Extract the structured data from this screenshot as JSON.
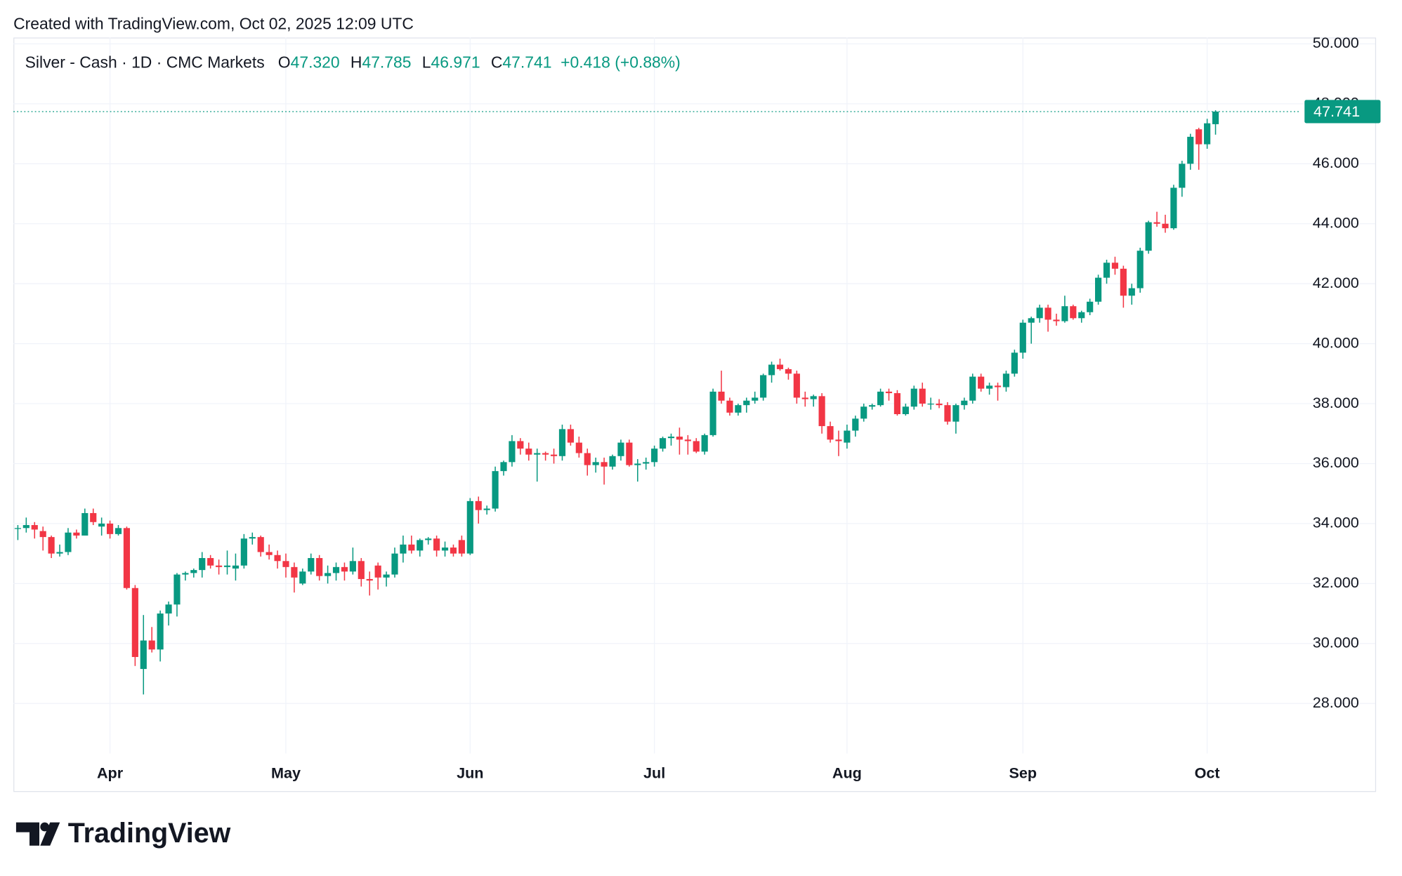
{
  "created": "Created with TradingView.com, Oct 02, 2025 12:09 UTC",
  "brand": "TradingView",
  "chart_data": {
    "type": "candlestick",
    "title": "Silver - Cash · 1D · CMC Markets",
    "ohlc_labels": [
      {
        "key": "O",
        "value": "47.320"
      },
      {
        "key": "H",
        "value": "47.785"
      },
      {
        "key": "L",
        "value": "46.971"
      },
      {
        "key": "C",
        "value": "47.741"
      }
    ],
    "change_label": "+0.418 (+0.88%)",
    "up_color": "#089981",
    "down_color": "#f23645",
    "grid": true,
    "xlim": [
      -0.53,
      153.2
    ],
    "xticks": [
      {
        "value": 11,
        "label": "Apr"
      },
      {
        "value": 32,
        "label": "May"
      },
      {
        "value": 54,
        "label": "Jun"
      },
      {
        "value": 76,
        "label": "Jul"
      },
      {
        "value": 99,
        "label": "Aug"
      },
      {
        "value": 120,
        "label": "Sep"
      },
      {
        "value": 142,
        "label": "Oct"
      }
    ],
    "ylim": [
      26.33,
      50.21
    ],
    "yticks": [
      {
        "value": 28,
        "label": "28.000"
      },
      {
        "value": 30,
        "label": "30.000"
      },
      {
        "value": 32,
        "label": "32.000"
      },
      {
        "value": 34,
        "label": "34.000"
      },
      {
        "value": 36,
        "label": "36.000"
      },
      {
        "value": 38,
        "label": "38.000"
      },
      {
        "value": 40,
        "label": "40.000"
      },
      {
        "value": 42,
        "label": "42.000"
      },
      {
        "value": 44,
        "label": "44.000"
      },
      {
        "value": 46,
        "label": "46.000"
      },
      {
        "value": 48,
        "label": "48.000"
      },
      {
        "value": 50,
        "label": "50.000"
      }
    ],
    "open": [
      33.85,
      33.85,
      33.95,
      33.75,
      33.55,
      33.0,
      33.05,
      33.7,
      33.6,
      34.35,
      33.9,
      34.0,
      33.65,
      33.85,
      31.85,
      29.15,
      30.1,
      29.8,
      31.0,
      31.3,
      32.3,
      32.35,
      32.45,
      32.85,
      32.6,
      32.55,
      32.5,
      32.6,
      33.5,
      33.55,
      33.05,
      32.95,
      32.75,
      32.55,
      32.0,
      32.4,
      32.85,
      32.25,
      32.35,
      32.55,
      32.4,
      32.75,
      32.15,
      32.6,
      32.2,
      32.3,
      33.0,
      33.3,
      33.1,
      33.45,
      33.5,
      33.1,
      33.2,
      33.45,
      33.0,
      34.75,
      34.45,
      34.5,
      35.75,
      36.05,
      36.75,
      36.5,
      36.3,
      36.35,
      36.3,
      36.25,
      37.15,
      36.7,
      36.35,
      35.95,
      36.05,
      35.9,
      36.25,
      36.7,
      35.95,
      36.0,
      36.05,
      36.5,
      36.85,
      36.9,
      36.8,
      36.75,
      36.4,
      36.95,
      38.4,
      38.1,
      37.7,
      37.95,
      38.1,
      38.2,
      38.95,
      39.3,
      39.15,
      39.0,
      38.2,
      38.15,
      38.25,
      37.25,
      36.8,
      36.7,
      37.1,
      37.5,
      37.9,
      37.95,
      38.4,
      38.35,
      37.65,
      37.9,
      38.5,
      38.0,
      38.0,
      37.95,
      37.4,
      37.95,
      38.1,
      38.9,
      38.5,
      38.6,
      38.55,
      39.0,
      39.7,
      40.7,
      40.85,
      41.2,
      40.8,
      40.75,
      41.25,
      40.85,
      41.05,
      41.4,
      42.2,
      42.7,
      42.5,
      41.6,
      41.85,
      43.1,
      44.05,
      44.0,
      43.85,
      45.2,
      46.0,
      47.15,
      46.65,
      47.32
    ],
    "high": [
      33.95,
      34.2,
      34.05,
      33.9,
      33.6,
      33.3,
      33.85,
      33.8,
      34.5,
      34.5,
      34.2,
      34.1,
      33.95,
      33.9,
      31.95,
      30.95,
      30.55,
      31.1,
      31.4,
      32.35,
      32.4,
      32.5,
      33.05,
      32.95,
      32.8,
      33.1,
      33.0,
      33.65,
      33.7,
      33.6,
      33.3,
      33.1,
      33.0,
      32.7,
      32.5,
      33.0,
      32.95,
      32.6,
      32.7,
      32.7,
      33.2,
      32.85,
      32.4,
      32.7,
      32.4,
      33.2,
      33.6,
      33.6,
      33.5,
      33.55,
      33.6,
      33.4,
      33.3,
      33.6,
      34.85,
      34.9,
      34.6,
      35.9,
      36.1,
      36.95,
      36.85,
      36.7,
      36.5,
      36.4,
      36.5,
      37.3,
      37.3,
      36.9,
      36.5,
      36.2,
      36.2,
      36.3,
      36.8,
      36.8,
      36.15,
      36.2,
      36.6,
      36.9,
      37.0,
      37.2,
      36.95,
      36.85,
      37.0,
      38.5,
      39.1,
      38.2,
      38.0,
      38.2,
      38.4,
      39.0,
      39.4,
      39.5,
      39.2,
      39.1,
      38.4,
      38.3,
      38.35,
      37.4,
      37.1,
      37.3,
      37.6,
      38.0,
      38.0,
      38.5,
      38.5,
      38.45,
      38.0,
      38.6,
      38.7,
      38.2,
      38.15,
      38.05,
      38.0,
      38.2,
      39.0,
      39.0,
      38.7,
      38.7,
      39.1,
      39.8,
      40.8,
      40.9,
      41.3,
      41.3,
      41.0,
      41.6,
      41.3,
      41.1,
      41.5,
      42.3,
      42.8,
      42.9,
      42.6,
      42.0,
      43.2,
      44.1,
      44.4,
      44.3,
      45.3,
      46.1,
      47.0,
      47.2,
      47.5,
      47.785
    ],
    "low": [
      33.45,
      33.7,
      33.5,
      33.1,
      32.85,
      32.9,
      32.95,
      33.5,
      33.6,
      33.95,
      33.6,
      33.5,
      33.6,
      31.8,
      29.25,
      28.3,
      29.7,
      29.4,
      30.6,
      30.9,
      32.1,
      32.2,
      32.2,
      32.5,
      32.3,
      32.3,
      32.1,
      32.5,
      33.3,
      32.9,
      32.8,
      32.5,
      32.2,
      31.7,
      31.95,
      32.3,
      32.1,
      32.0,
      32.1,
      32.1,
      32.3,
      31.9,
      31.6,
      31.8,
      31.9,
      32.2,
      32.7,
      33.0,
      32.9,
      33.3,
      32.9,
      32.9,
      32.9,
      32.9,
      32.95,
      34.0,
      34.3,
      34.4,
      35.6,
      35.9,
      36.3,
      36.1,
      35.4,
      36.1,
      36.0,
      36.1,
      36.6,
      36.2,
      35.6,
      35.7,
      35.3,
      35.8,
      36.1,
      35.9,
      35.4,
      35.8,
      35.9,
      36.4,
      36.6,
      36.3,
      36.3,
      36.35,
      36.3,
      36.9,
      38.0,
      37.6,
      37.6,
      37.7,
      38.0,
      38.1,
      38.7,
      39.1,
      38.8,
      38.0,
      37.9,
      37.9,
      37.0,
      36.7,
      36.25,
      36.5,
      36.9,
      37.4,
      37.8,
      37.9,
      38.1,
      37.6,
      37.6,
      37.8,
      37.9,
      37.8,
      37.85,
      37.3,
      37.0,
      37.8,
      38.0,
      38.4,
      38.3,
      38.1,
      38.4,
      38.9,
      39.5,
      40.0,
      40.7,
      40.4,
      40.6,
      40.7,
      40.8,
      40.7,
      40.95,
      41.3,
      42.0,
      42.3,
      41.2,
      41.3,
      41.7,
      43.0,
      43.9,
      43.7,
      43.8,
      44.9,
      45.8,
      45.8,
      46.5,
      46.971
    ],
    "close": [
      33.85,
      33.95,
      33.8,
      33.55,
      33.0,
      33.05,
      33.7,
      33.6,
      34.35,
      34.05,
      34.0,
      33.65,
      33.85,
      31.85,
      29.55,
      30.1,
      29.8,
      31.0,
      31.3,
      32.3,
      32.35,
      32.45,
      32.85,
      32.6,
      32.55,
      32.6,
      32.6,
      33.5,
      33.55,
      33.05,
      32.95,
      32.75,
      32.55,
      32.2,
      32.4,
      32.85,
      32.25,
      32.35,
      32.55,
      32.4,
      32.75,
      32.15,
      32.1,
      32.2,
      32.3,
      33.0,
      33.3,
      33.1,
      33.45,
      33.5,
      33.1,
      33.2,
      33.0,
      33.0,
      34.75,
      34.45,
      34.5,
      35.75,
      36.05,
      36.75,
      36.5,
      36.3,
      36.35,
      36.3,
      36.25,
      37.15,
      36.7,
      36.35,
      35.95,
      36.05,
      35.9,
      36.25,
      36.7,
      35.95,
      36.0,
      36.05,
      36.5,
      36.85,
      36.9,
      36.8,
      36.75,
      36.4,
      36.95,
      38.4,
      38.1,
      37.7,
      37.95,
      38.1,
      38.2,
      38.95,
      39.3,
      39.15,
      39.0,
      38.2,
      38.15,
      38.25,
      37.25,
      36.8,
      36.75,
      37.1,
      37.5,
      37.9,
      37.95,
      38.4,
      38.35,
      37.65,
      37.9,
      38.5,
      38.0,
      38.0,
      37.95,
      37.4,
      37.95,
      38.1,
      38.9,
      38.5,
      38.6,
      38.55,
      39.0,
      39.7,
      40.7,
      40.85,
      41.2,
      40.8,
      40.75,
      41.25,
      40.85,
      41.05,
      41.4,
      42.2,
      42.7,
      42.5,
      41.6,
      41.85,
      43.1,
      44.05,
      44.0,
      43.85,
      45.2,
      46.0,
      46.9,
      46.65,
      47.35,
      47.741
    ]
  }
}
